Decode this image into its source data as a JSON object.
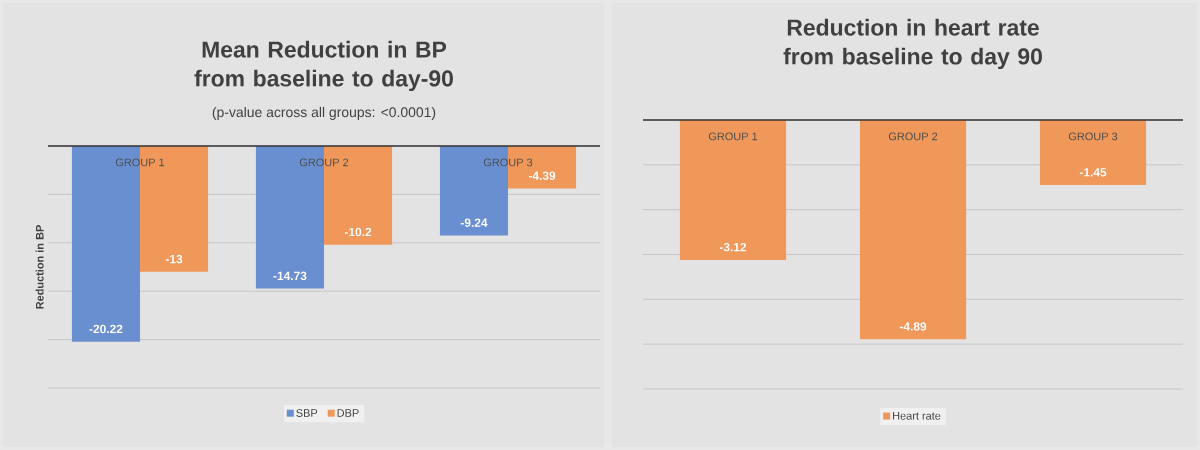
{
  "chart_data": [
    {
      "type": "bar",
      "title": "Mean Reduction in BP from baseline to day-90",
      "subtitle": "(p-value across all groups: <0.0001)",
      "ylabel": "Reduction in BP",
      "categories": [
        "GROUP 1",
        "GROUP 2",
        "GROUP 3"
      ],
      "series": [
        {
          "name": "SBP",
          "color": "#6a8fd1",
          "values": [
            -20.22,
            -14.73,
            -9.24
          ]
        },
        {
          "name": "DBP",
          "color": "#f0985a",
          "values": [
            -13,
            -10.2,
            -4.39
          ]
        }
      ],
      "ylim": [
        -25,
        0
      ],
      "yticks": [
        {
          "value": -25,
          "label": null
        },
        {
          "value": -20,
          "label": null
        },
        {
          "value": -15,
          "label": null
        },
        {
          "value": -10,
          "label": null
        },
        {
          "value": -5,
          "label": null
        },
        {
          "value": 0,
          "label": null
        }
      ],
      "grid": "y",
      "data_labels": true,
      "legend": "bottom"
    },
    {
      "type": "bar",
      "title": "Reduction in heart rate from baseline to day 90",
      "categories": [
        "GROUP 1",
        "GROUP 2",
        "GROUP 3"
      ],
      "series": [
        {
          "name": "Heart rate",
          "color": "#f0985a",
          "values": [
            -3.12,
            -4.89,
            -1.45
          ]
        }
      ],
      "ylim": [
        -6,
        0
      ],
      "yticks": [
        {
          "value": -6,
          "label": null
        },
        {
          "value": -5,
          "label": null
        },
        {
          "value": -4,
          "label": null
        },
        {
          "value": -3,
          "label": null
        },
        {
          "value": -2,
          "label": null
        },
        {
          "value": -1,
          "label": null
        },
        {
          "value": 0,
          "label": null
        }
      ],
      "grid": "y",
      "data_labels": true,
      "legend": "bottom"
    }
  ]
}
